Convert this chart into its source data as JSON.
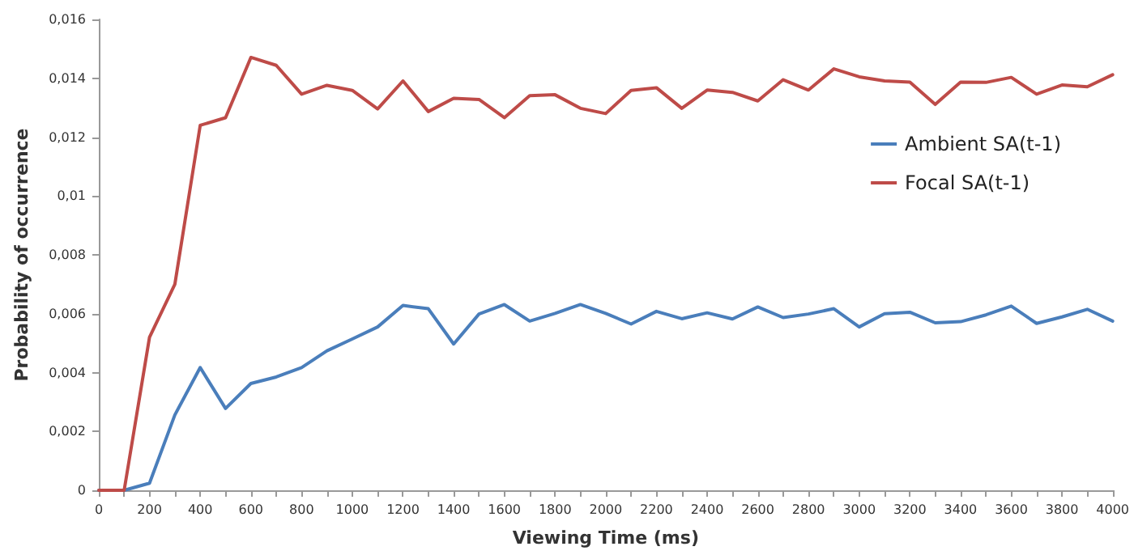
{
  "chart_data": {
    "type": "line",
    "xlabel": "Viewing Time (ms)",
    "ylabel": "Probability of occurrence",
    "x": [
      0,
      100,
      200,
      300,
      400,
      500,
      600,
      700,
      800,
      900,
      1000,
      1100,
      1200,
      1300,
      1400,
      1500,
      1600,
      1700,
      1800,
      1900,
      2000,
      2100,
      2200,
      2300,
      2400,
      2500,
      2600,
      2700,
      2800,
      2900,
      3000,
      3100,
      3200,
      3300,
      3400,
      3500,
      3600,
      3700,
      3800,
      3900,
      4000
    ],
    "series": [
      {
        "name": "Ambient SA(t-1)",
        "color": "#4a7ebb",
        "values": [
          0,
          0,
          0.00024,
          0.00256,
          0.00417,
          0.00278,
          0.00363,
          0.00385,
          0.00417,
          0.00474,
          0.00514,
          0.00555,
          0.00628,
          0.00617,
          0.00497,
          0.00599,
          0.00631,
          0.00575,
          0.00601,
          0.00631,
          0.00601,
          0.00565,
          0.00608,
          0.00583,
          0.00603,
          0.00582,
          0.00623,
          0.00587,
          0.00599,
          0.00617,
          0.00555,
          0.006,
          0.00605,
          0.00569,
          0.00573,
          0.00596,
          0.00626,
          0.00567,
          0.00589,
          0.00615,
          0.00575
        ]
      },
      {
        "name": "Focal SA(t-1)",
        "color": "#be4b48",
        "values": [
          0,
          0,
          0.0052,
          0.007,
          0.0124,
          0.01266,
          0.01471,
          0.01444,
          0.01346,
          0.01376,
          0.01359,
          0.01296,
          0.01391,
          0.01287,
          0.01332,
          0.01328,
          0.01266,
          0.01341,
          0.01344,
          0.01298,
          0.0128,
          0.01359,
          0.01368,
          0.01298,
          0.0136,
          0.01352,
          0.01323,
          0.01395,
          0.0136,
          0.01432,
          0.01405,
          0.01391,
          0.01387,
          0.01311,
          0.01387,
          0.01386,
          0.01403,
          0.01346,
          0.01377,
          0.01371,
          0.01412
        ]
      }
    ],
    "xlim": [
      0,
      4000
    ],
    "xticks": [
      0,
      {
        "value": 100,
        "label": null
      },
      200,
      {
        "value": 300,
        "label": null
      },
      400,
      {
        "value": 500,
        "label": null
      },
      600,
      {
        "value": 700,
        "label": null
      },
      800,
      {
        "value": 900,
        "label": null
      },
      1000,
      {
        "value": 1100,
        "label": null
      },
      1200,
      {
        "value": 1300,
        "label": null
      },
      1400,
      {
        "value": 1500,
        "label": null
      },
      1600,
      {
        "value": 1700,
        "label": null
      },
      1800,
      {
        "value": 1900,
        "label": null
      },
      2000,
      {
        "value": 2100,
        "label": null
      },
      2200,
      {
        "value": 2300,
        "label": null
      },
      2400,
      {
        "value": 2500,
        "label": null
      },
      2600,
      {
        "value": 2700,
        "label": null
      },
      2800,
      {
        "value": 2900,
        "label": null
      },
      3000,
      {
        "value": 3100,
        "label": null
      },
      3200,
      {
        "value": 3300,
        "label": null
      },
      3400,
      {
        "value": 3500,
        "label": null
      },
      3600,
      {
        "value": 3700,
        "label": null
      },
      3800,
      {
        "value": 3900,
        "label": null
      },
      4000
    ],
    "ylim": [
      0,
      0.016
    ],
    "yticks": [
      0,
      {
        "value": 0.002,
        "label": "0,002"
      },
      {
        "value": 0.004,
        "label": "0,004"
      },
      {
        "value": 0.006,
        "label": "0,006"
      },
      {
        "value": 0.008,
        "label": "0,008"
      },
      {
        "value": 0.01,
        "label": "0,01"
      },
      {
        "value": 0.012,
        "label": "0,012"
      },
      {
        "value": 0.014,
        "label": "0,014"
      },
      {
        "value": 0.016,
        "label": "0,016"
      }
    ],
    "legend": "right",
    "grid": false,
    "marker": "none",
    "line_style": "solid"
  }
}
